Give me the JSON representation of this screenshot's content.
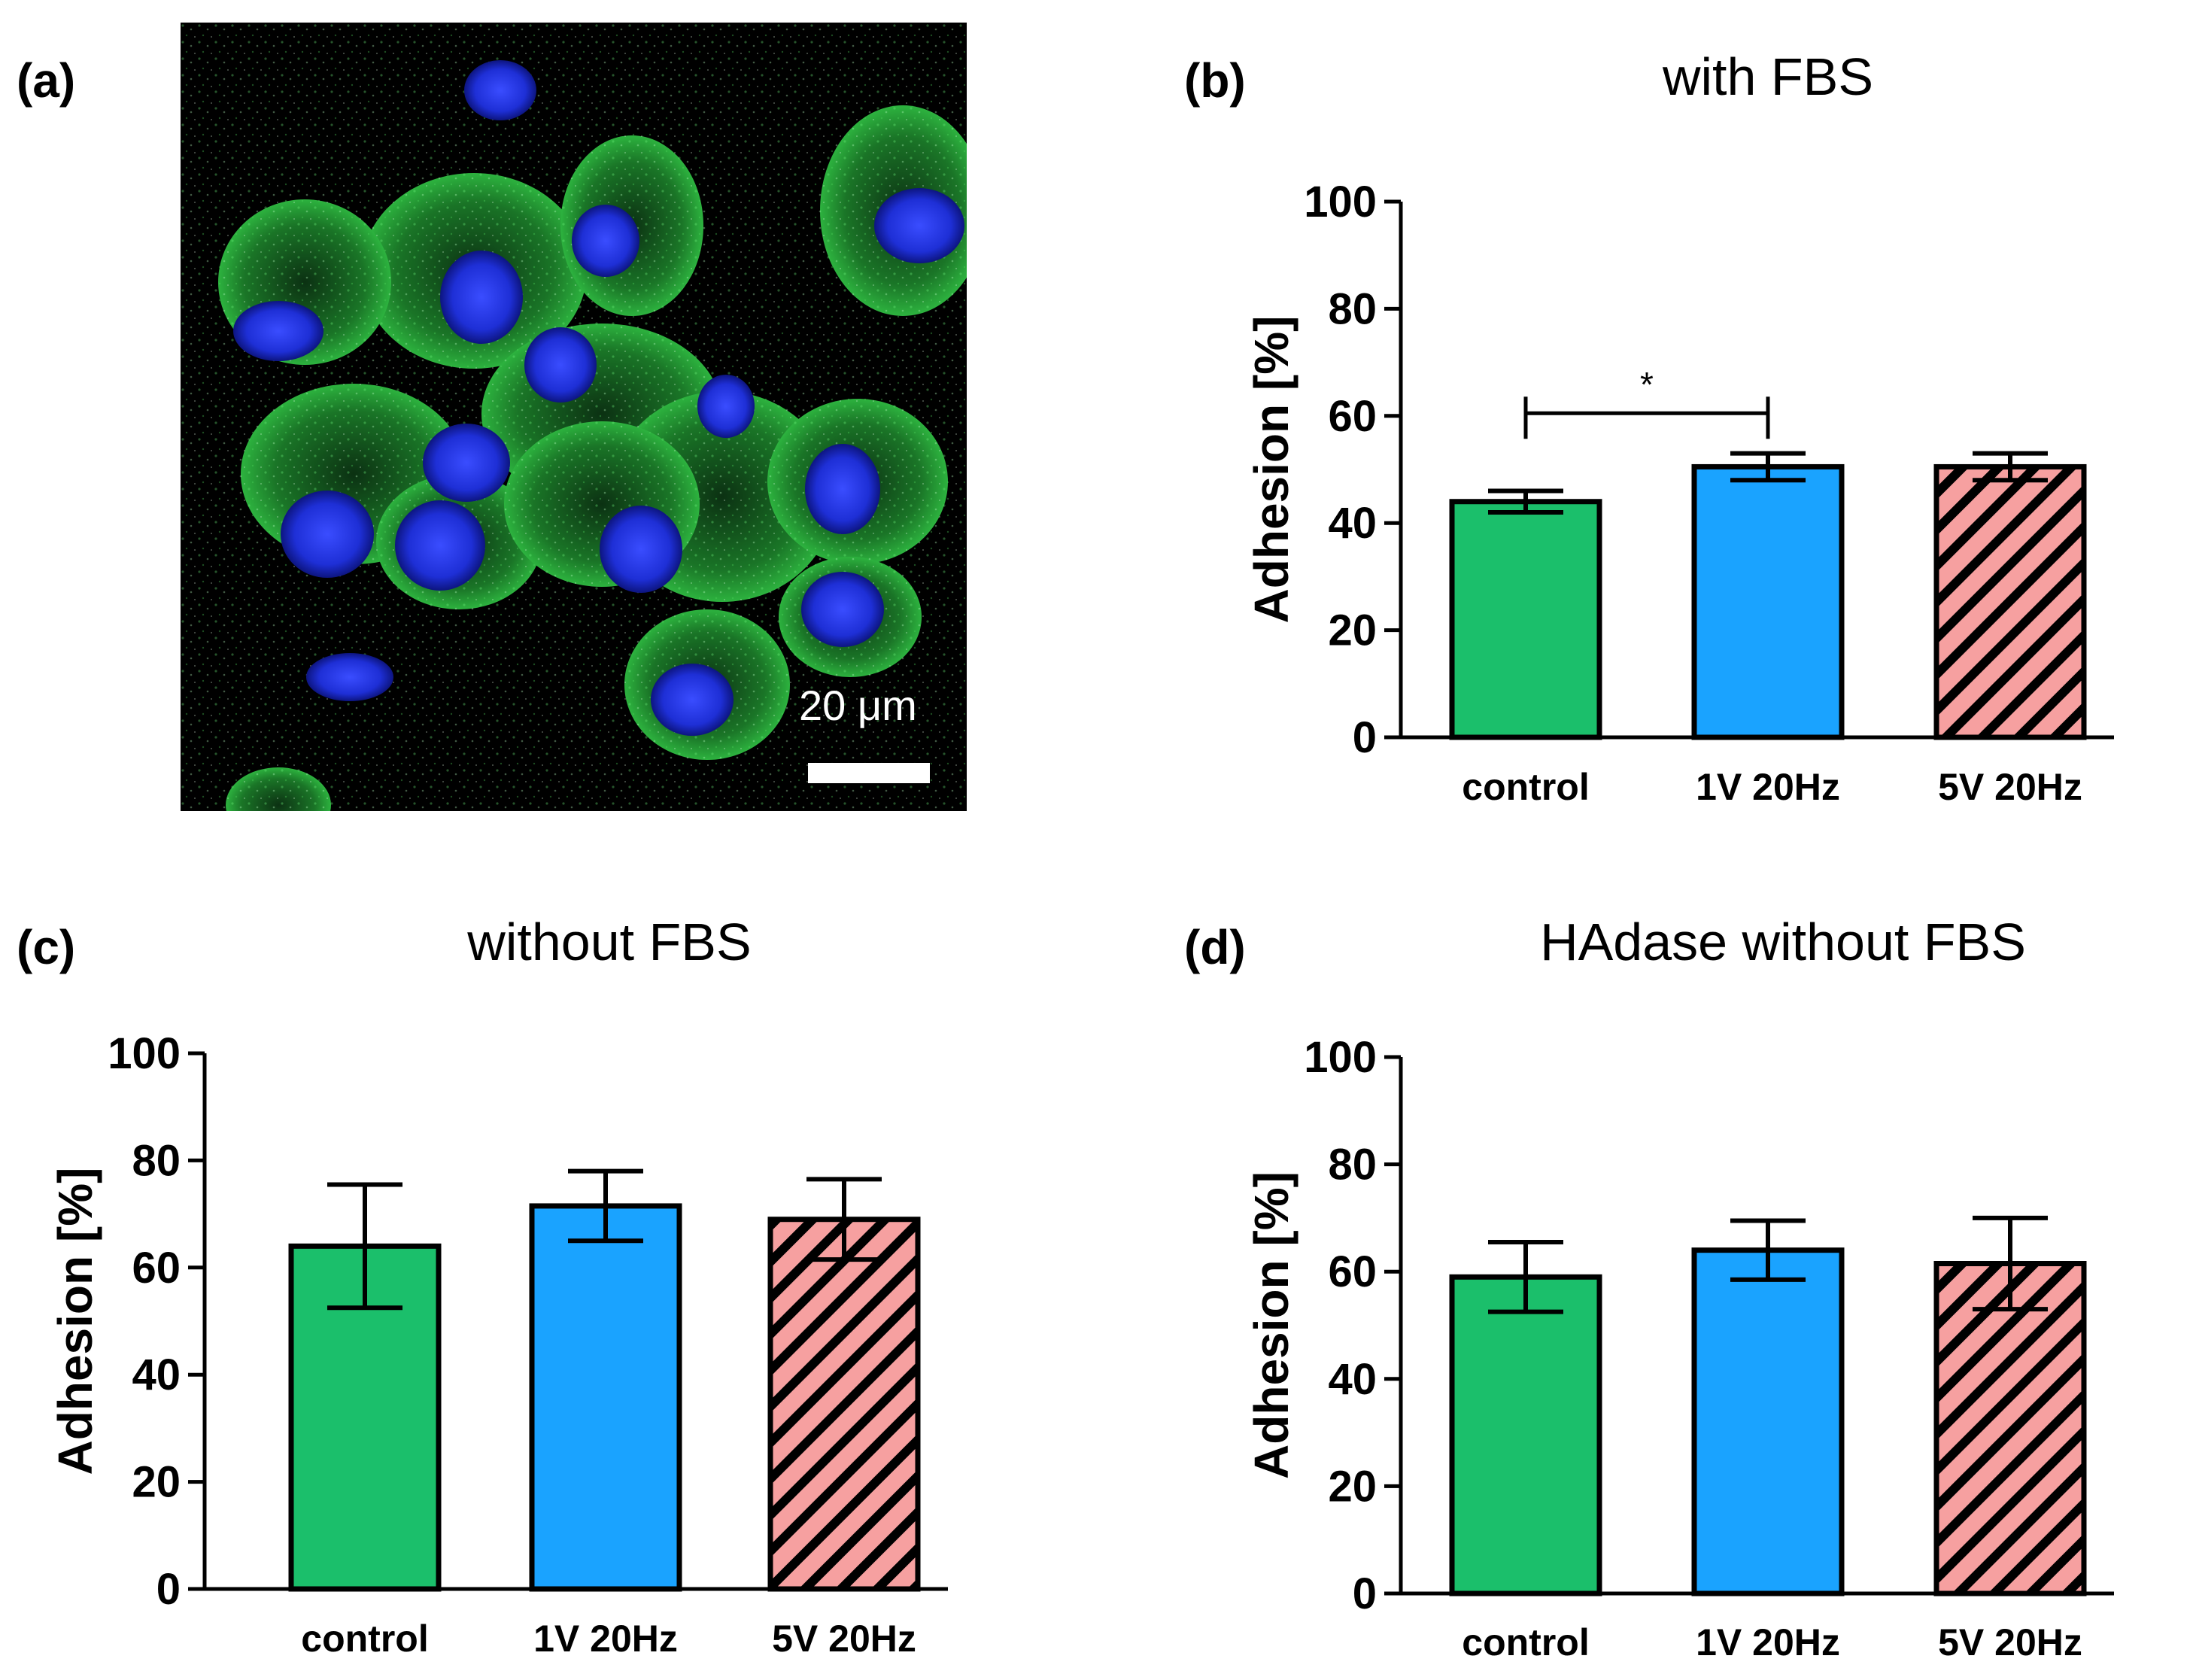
{
  "panels": {
    "a": {
      "letter": "(a)",
      "scale_label": "20 μm"
    },
    "b": {
      "letter": "(b)",
      "title": "with FBS"
    },
    "c": {
      "letter": "(c)",
      "title": "without FBS"
    },
    "d": {
      "letter": "(d)",
      "title": "HAdase without FBS"
    }
  },
  "colors": {
    "control": "#1bbf6b",
    "v1": "#1aa3ff",
    "v5": "#f6a0a0",
    "hatch": "#000000",
    "nucleus": "#1e2fd6",
    "membrane": "#27c43a"
  },
  "icons": {
    "scale_bar": "scale-bar-icon"
  },
  "chart_data": [
    {
      "type": "bar",
      "panel": "b",
      "title": "with FBS",
      "xlabel": "",
      "ylabel": "Adhesion [%]",
      "ylim": [
        0,
        100
      ],
      "yticks": [
        0,
        20,
        40,
        60,
        80,
        100
      ],
      "categories": [
        "control",
        "1V 20Hz",
        "5V 20Hz"
      ],
      "values": [
        44,
        50.5,
        50.5
      ],
      "errors": [
        2,
        2.5,
        2.5
      ],
      "patterns": [
        "solid",
        "solid",
        "hatched"
      ],
      "significance": [
        {
          "from": 0,
          "to": 1,
          "label": "*"
        }
      ]
    },
    {
      "type": "bar",
      "panel": "c",
      "title": "without FBS",
      "xlabel": "",
      "ylabel": "Adhesion [%]",
      "ylim": [
        0,
        100
      ],
      "yticks": [
        0,
        20,
        40,
        60,
        80,
        100
      ],
      "categories": [
        "control",
        "1V 20Hz",
        "5V 20Hz"
      ],
      "values": [
        64,
        71.5,
        69
      ],
      "errors": [
        11.5,
        6.5,
        7.5
      ],
      "patterns": [
        "solid",
        "solid",
        "hatched"
      ]
    },
    {
      "type": "bar",
      "panel": "d",
      "title": "HAdase without FBS",
      "xlabel": "",
      "ylabel": "Adhesion [%]",
      "ylim": [
        0,
        100
      ],
      "yticks": [
        0,
        20,
        40,
        60,
        80,
        100
      ],
      "categories": [
        "control",
        "1V 20Hz",
        "5V 20Hz"
      ],
      "values": [
        59,
        64,
        61.5
      ],
      "errors": [
        6.5,
        5.5,
        8.5
      ],
      "patterns": [
        "solid",
        "solid",
        "hatched"
      ]
    }
  ]
}
